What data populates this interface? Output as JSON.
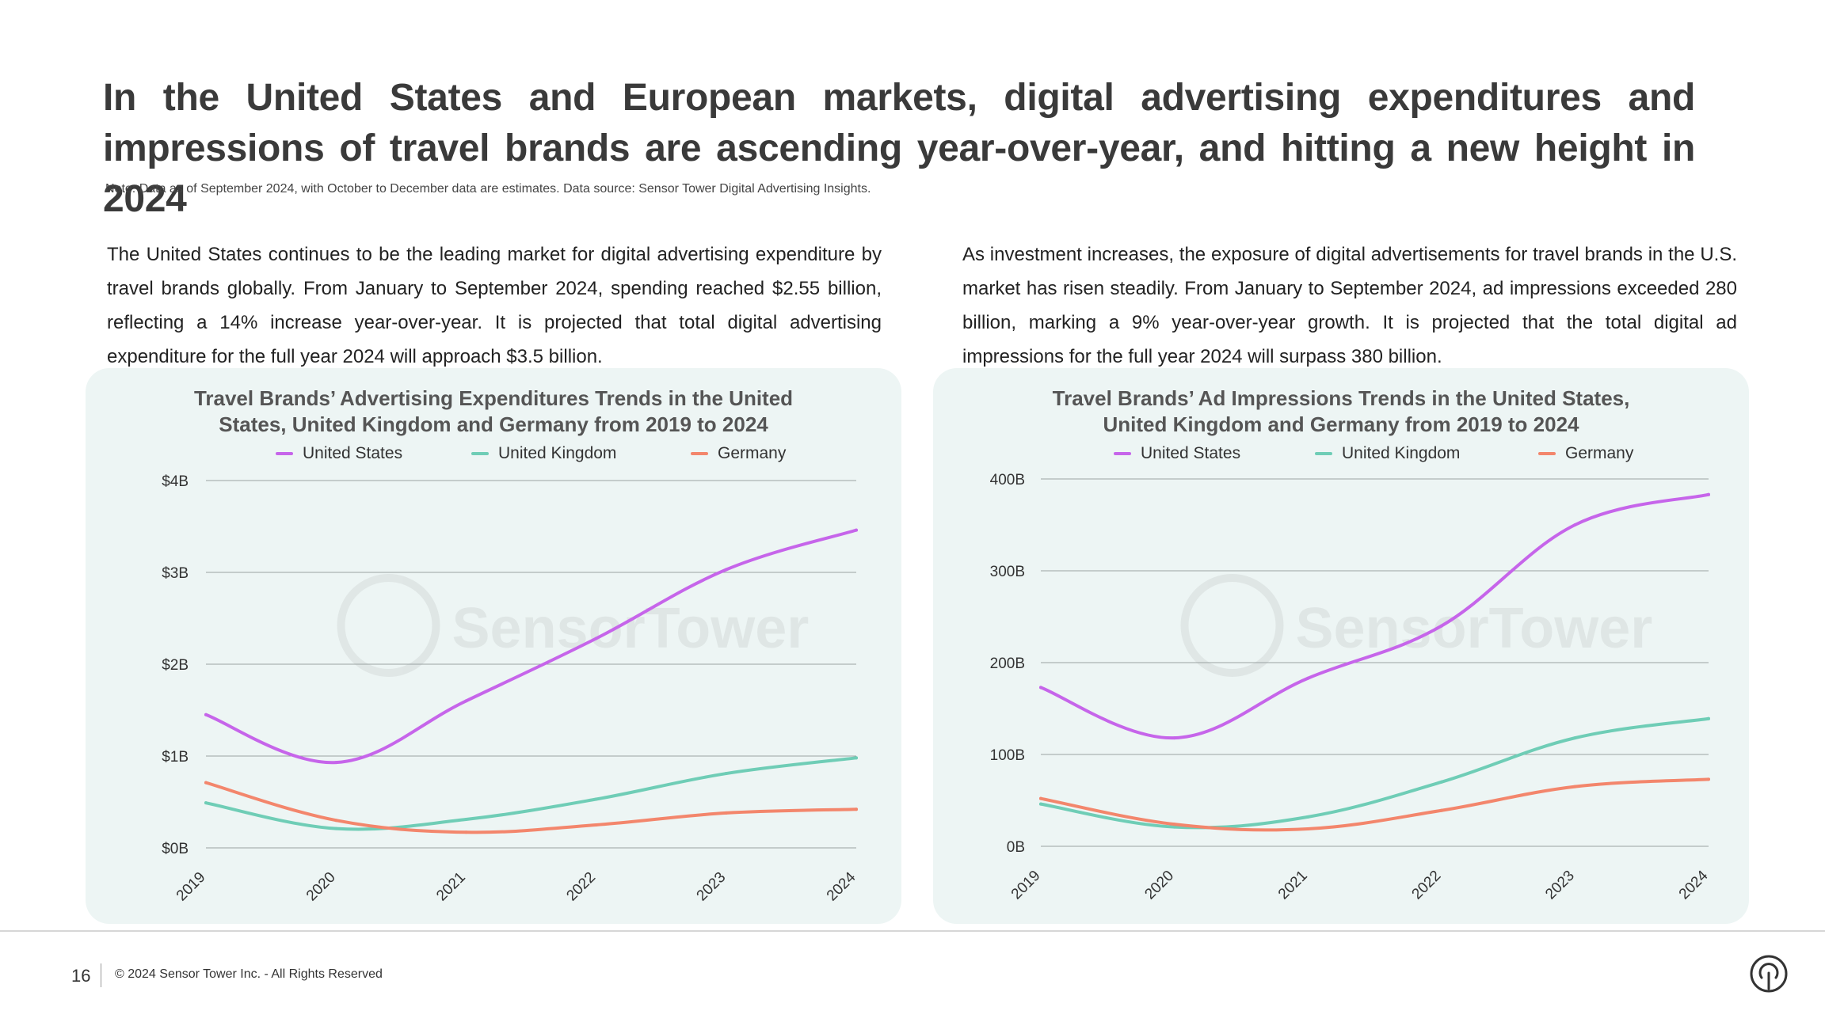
{
  "headline": "In the United States and European markets, digital advertising expenditures and impressions of travel brands are ascending year-over-year, and hitting a new height in 2024",
  "note": "Note: Data as of September 2024, with October to December data are estimates. Data source: Sensor Tower Digital Advertising Insights.",
  "paragraphs": {
    "left": "The United States continues to be the leading market for digital advertising expenditure by travel brands globally. From January to September 2024, spending reached $2.55 billion, reflecting a 14% increase year-over-year. It is projected that total digital advertising expenditure for the full year 2024 will approach $3.5 billion.",
    "right": "As investment increases, the exposure of digital advertisements for travel brands in the U.S. market has risen steadily. From January to September 2024, ad impressions exceeded 280 billion, marking a 9% year-over-year growth. It is projected that the total digital ad impressions for the full year 2024 will surpass 380 billion."
  },
  "watermark": "SensorTower",
  "colors": {
    "us": "#c665ea",
    "uk": "#6fcdb6",
    "de": "#f3866c",
    "panel": "#edf5f4",
    "grid": "#9aa3a2"
  },
  "chart_data": [
    {
      "type": "line",
      "title": "Travel Brands’ Advertising Expenditures Trends in the United States, United Kingdom and Germany from 2019 to 2024",
      "title_lines": [
        "Travel Brands’ Advertising Expenditures Trends in the United",
        "States, United Kingdom and Germany from 2019 to 2024"
      ],
      "x": [
        "2019",
        "2020",
        "2021",
        "2022",
        "2023",
        "2024"
      ],
      "yticks": [
        0,
        1,
        2,
        3,
        4
      ],
      "ytick_labels": [
        "$0B",
        "$1B",
        "$2B",
        "$3B",
        "$4B"
      ],
      "ylim": [
        0,
        4
      ],
      "unit": "$B",
      "grid": true,
      "legend_position": "top",
      "series": [
        {
          "name": "United States",
          "color_key": "us",
          "values": [
            1.45,
            0.93,
            1.6,
            2.28,
            3.03,
            3.46
          ]
        },
        {
          "name": "United Kingdom",
          "color_key": "uk",
          "values": [
            0.49,
            0.21,
            0.31,
            0.53,
            0.81,
            0.98
          ]
        },
        {
          "name": "Germany",
          "color_key": "de",
          "values": [
            0.71,
            0.3,
            0.17,
            0.25,
            0.38,
            0.42
          ]
        }
      ]
    },
    {
      "type": "line",
      "title": "Travel Brands’ Ad Impressions Trends in the United States, United Kingdom and Germany from 2019 to 2024",
      "title_lines": [
        "Travel Brands’ Ad Impressions Trends in the United States,",
        "United Kingdom and Germany from 2019 to 2024"
      ],
      "x": [
        "2019",
        "2020",
        "2021",
        "2022",
        "2023",
        "2024"
      ],
      "yticks": [
        0,
        100,
        200,
        300,
        400
      ],
      "ytick_labels": [
        "0B",
        "100B",
        "200B",
        "300B",
        "400B"
      ],
      "ylim": [
        0,
        400
      ],
      "unit": "B impressions",
      "grid": true,
      "legend_position": "top",
      "series": [
        {
          "name": "United States",
          "color_key": "us",
          "values": [
            173,
            118,
            183,
            240,
            350,
            383
          ]
        },
        {
          "name": "United Kingdom",
          "color_key": "uk",
          "values": [
            46,
            21,
            32,
            70,
            118,
            139
          ]
        },
        {
          "name": "Germany",
          "color_key": "de",
          "values": [
            52,
            24,
            19,
            39,
            65,
            73
          ]
        }
      ]
    }
  ],
  "footer": {
    "page_number": "16",
    "copyright": "© 2024 Sensor Tower Inc. - All Rights Reserved"
  }
}
